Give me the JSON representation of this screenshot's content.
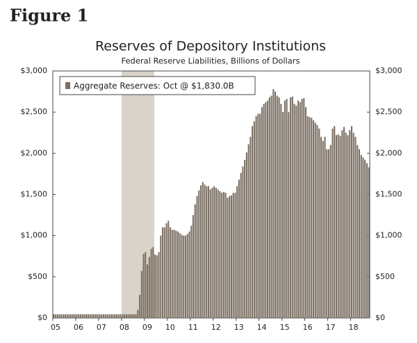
{
  "chart_data": {
    "type": "bar",
    "figure_label": "Figure 1",
    "title": "Reserves of Depository Institutions",
    "subtitle": "Federal Reserve Liabilities, Billions of Dollars",
    "categories": [
      "05",
      null,
      null,
      null,
      null,
      null,
      null,
      null,
      null,
      null,
      null,
      null,
      "06",
      null,
      null,
      null,
      null,
      null,
      null,
      null,
      null,
      null,
      null,
      null,
      "07",
      null,
      null,
      null,
      null,
      null,
      null,
      null,
      null,
      null,
      null,
      null,
      "08",
      null,
      null,
      null,
      null,
      null,
      null,
      null,
      null,
      null,
      null,
      null,
      "09",
      null,
      null,
      null,
      null,
      null,
      null,
      null,
      null,
      null,
      null,
      null,
      "10",
      null,
      null,
      null,
      null,
      null,
      null,
      null,
      null,
      null,
      null,
      null,
      "11",
      null,
      null,
      null,
      null,
      null,
      null,
      null,
      null,
      null,
      null,
      null,
      "12",
      null,
      null,
      null,
      null,
      null,
      null,
      null,
      null,
      null,
      null,
      null,
      "13",
      null,
      null,
      null,
      null,
      null,
      null,
      null,
      null,
      null,
      null,
      null,
      "14",
      null,
      null,
      null,
      null,
      null,
      null,
      null,
      null,
      null,
      null,
      null,
      "15",
      null,
      null,
      null,
      null,
      null,
      null,
      null,
      null,
      null,
      null,
      null,
      "16",
      null,
      null,
      null,
      null,
      null,
      null,
      null,
      null,
      null,
      null,
      null,
      "17",
      null,
      null,
      null,
      null,
      null,
      null,
      null,
      null,
      null,
      null,
      null,
      "18",
      null,
      null,
      null,
      null,
      null,
      null,
      null,
      null,
      null
    ],
    "series": [
      {
        "name": "Aggregate Reserves: Oct @ $1,830.0B",
        "color": "#7a6f63",
        "values": [
          45,
          45,
          45,
          45,
          45,
          45,
          45,
          45,
          45,
          45,
          45,
          45,
          45,
          45,
          45,
          45,
          45,
          45,
          45,
          45,
          45,
          45,
          45,
          45,
          45,
          45,
          45,
          45,
          45,
          45,
          45,
          45,
          45,
          45,
          45,
          45,
          44,
          45,
          45,
          44,
          45,
          45,
          45,
          45,
          100,
          280,
          570,
          780,
          800,
          650,
          740,
          840,
          860,
          770,
          760,
          800,
          1000,
          1100,
          1100,
          1150,
          1180,
          1100,
          1070,
          1070,
          1060,
          1050,
          1030,
          1010,
          1000,
          1000,
          1020,
          1050,
          1120,
          1250,
          1380,
          1480,
          1550,
          1610,
          1650,
          1620,
          1600,
          1600,
          1560,
          1580,
          1600,
          1580,
          1560,
          1540,
          1520,
          1530,
          1520,
          1460,
          1480,
          1490,
          1520,
          1520,
          1600,
          1680,
          1760,
          1840,
          1920,
          2010,
          2110,
          2200,
          2330,
          2390,
          2450,
          2480,
          2480,
          2560,
          2600,
          2620,
          2640,
          2680,
          2700,
          2780,
          2750,
          2700,
          2680,
          2600,
          2500,
          2640,
          2660,
          2500,
          2680,
          2690,
          2600,
          2580,
          2640,
          2620,
          2660,
          2670,
          2560,
          2450,
          2440,
          2430,
          2400,
          2370,
          2340,
          2300,
          2200,
          2150,
          2200,
          2050,
          2050,
          2100,
          2300,
          2330,
          2220,
          2230,
          2210,
          2280,
          2320,
          2250,
          2220,
          2280,
          2330,
          2250,
          2200,
          2100,
          2050,
          1980,
          1950,
          1920,
          1880,
          1830
        ]
      }
    ],
    "ylim": [
      0,
      3000
    ],
    "yticks": [
      {
        "value": 0,
        "label": "$0"
      },
      {
        "value": 500,
        "label": "$500"
      },
      {
        "value": 1000,
        "label": "$1,000"
      },
      {
        "value": 1500,
        "label": "$1,500"
      },
      {
        "value": 2000,
        "label": "$2,000"
      },
      {
        "value": 2500,
        "label": "$2,500"
      },
      {
        "value": 3000,
        "label": "$3,000"
      }
    ],
    "grid": false,
    "legend": "upper left"
  }
}
